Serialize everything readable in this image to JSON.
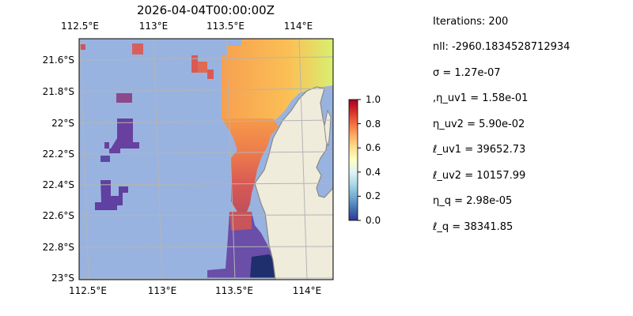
{
  "figure": {
    "title": "2026-04-04T00:00:00Z",
    "lon_ticks": [
      "112.5°E",
      "113°E",
      "113.5°E",
      "114°E"
    ],
    "lat_ticks": [
      "21.6°S",
      "21.8°S",
      "22°S",
      "22.2°S",
      "22.4°S",
      "22.6°S",
      "22.8°S",
      "23°S"
    ],
    "colorbar": {
      "ticks": [
        "1.0",
        "0.8",
        "0.6",
        "0.4",
        "0.2",
        "0.0"
      ],
      "colormap": "RdYlBu_r"
    },
    "colors": {
      "ocean": "#99b3e0",
      "land": "#efecdc",
      "coast": "#888888",
      "grid": "#b4b4b4"
    }
  },
  "stats": [
    "Iterations: 200",
    "nll: -2960.1834528712934",
    "σ = 1.27e-07",
    ",η_uv1 = 1.58e-01",
    "η_uv2 = 5.90e-02",
    "ℓ_uv1 = 39652.73",
    "ℓ_uv2 = 10157.99",
    "η_q = 2.98e-05",
    "ℓ_q = 38341.85"
  ]
}
